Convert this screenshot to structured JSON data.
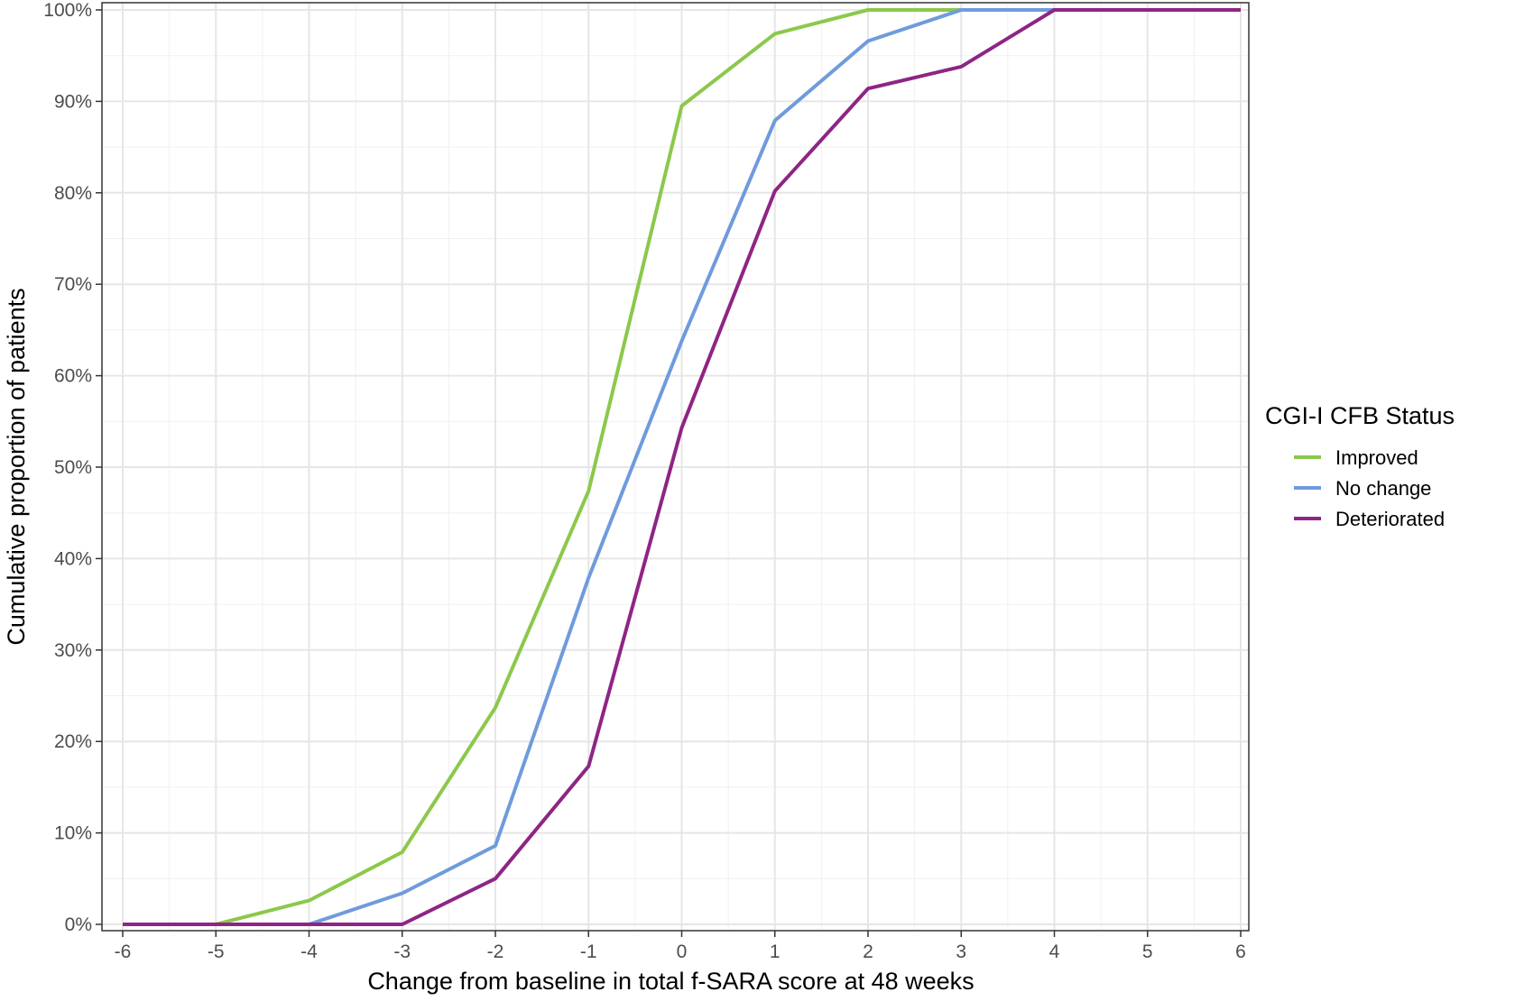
{
  "chart_data": {
    "type": "line",
    "title": "",
    "xlabel": "Change from baseline in total f-SARA score at 48 weeks",
    "ylabel": "Cumulative proportion of patients",
    "x": [
      -6,
      -5,
      -4,
      -3,
      -2,
      -1,
      0,
      1,
      2,
      3,
      4,
      5,
      6
    ],
    "xlim": [
      -6,
      6
    ],
    "ylim": [
      0,
      100
    ],
    "x_ticks": [
      "-6",
      "-5",
      "-4",
      "-3",
      "-2",
      "-1",
      "0",
      "1",
      "2",
      "3",
      "4",
      "5",
      "6"
    ],
    "y_ticks": [
      "0%",
      "10%",
      "20%",
      "30%",
      "40%",
      "50%",
      "60%",
      "70%",
      "80%",
      "90%",
      "100%"
    ],
    "grid": true,
    "legend_title": "CGI-I CFB Status",
    "legend_position": "right",
    "series": [
      {
        "name": "Improved",
        "color": "#8cc84b",
        "values": [
          0,
          0,
          2.6,
          7.9,
          23.7,
          47.4,
          89.5,
          97.4,
          100,
          100,
          100,
          100,
          100
        ]
      },
      {
        "name": "No change",
        "color": "#6f9bdc",
        "values": [
          0,
          0,
          0,
          3.4,
          8.6,
          37.9,
          63.8,
          87.9,
          96.6,
          100,
          100,
          100,
          100
        ]
      },
      {
        "name": "Deteriorated",
        "color": "#8e2584",
        "values": [
          0,
          0,
          0,
          0,
          5.0,
          17.3,
          54.3,
          80.2,
          91.4,
          93.8,
          100,
          100,
          100
        ]
      }
    ]
  }
}
